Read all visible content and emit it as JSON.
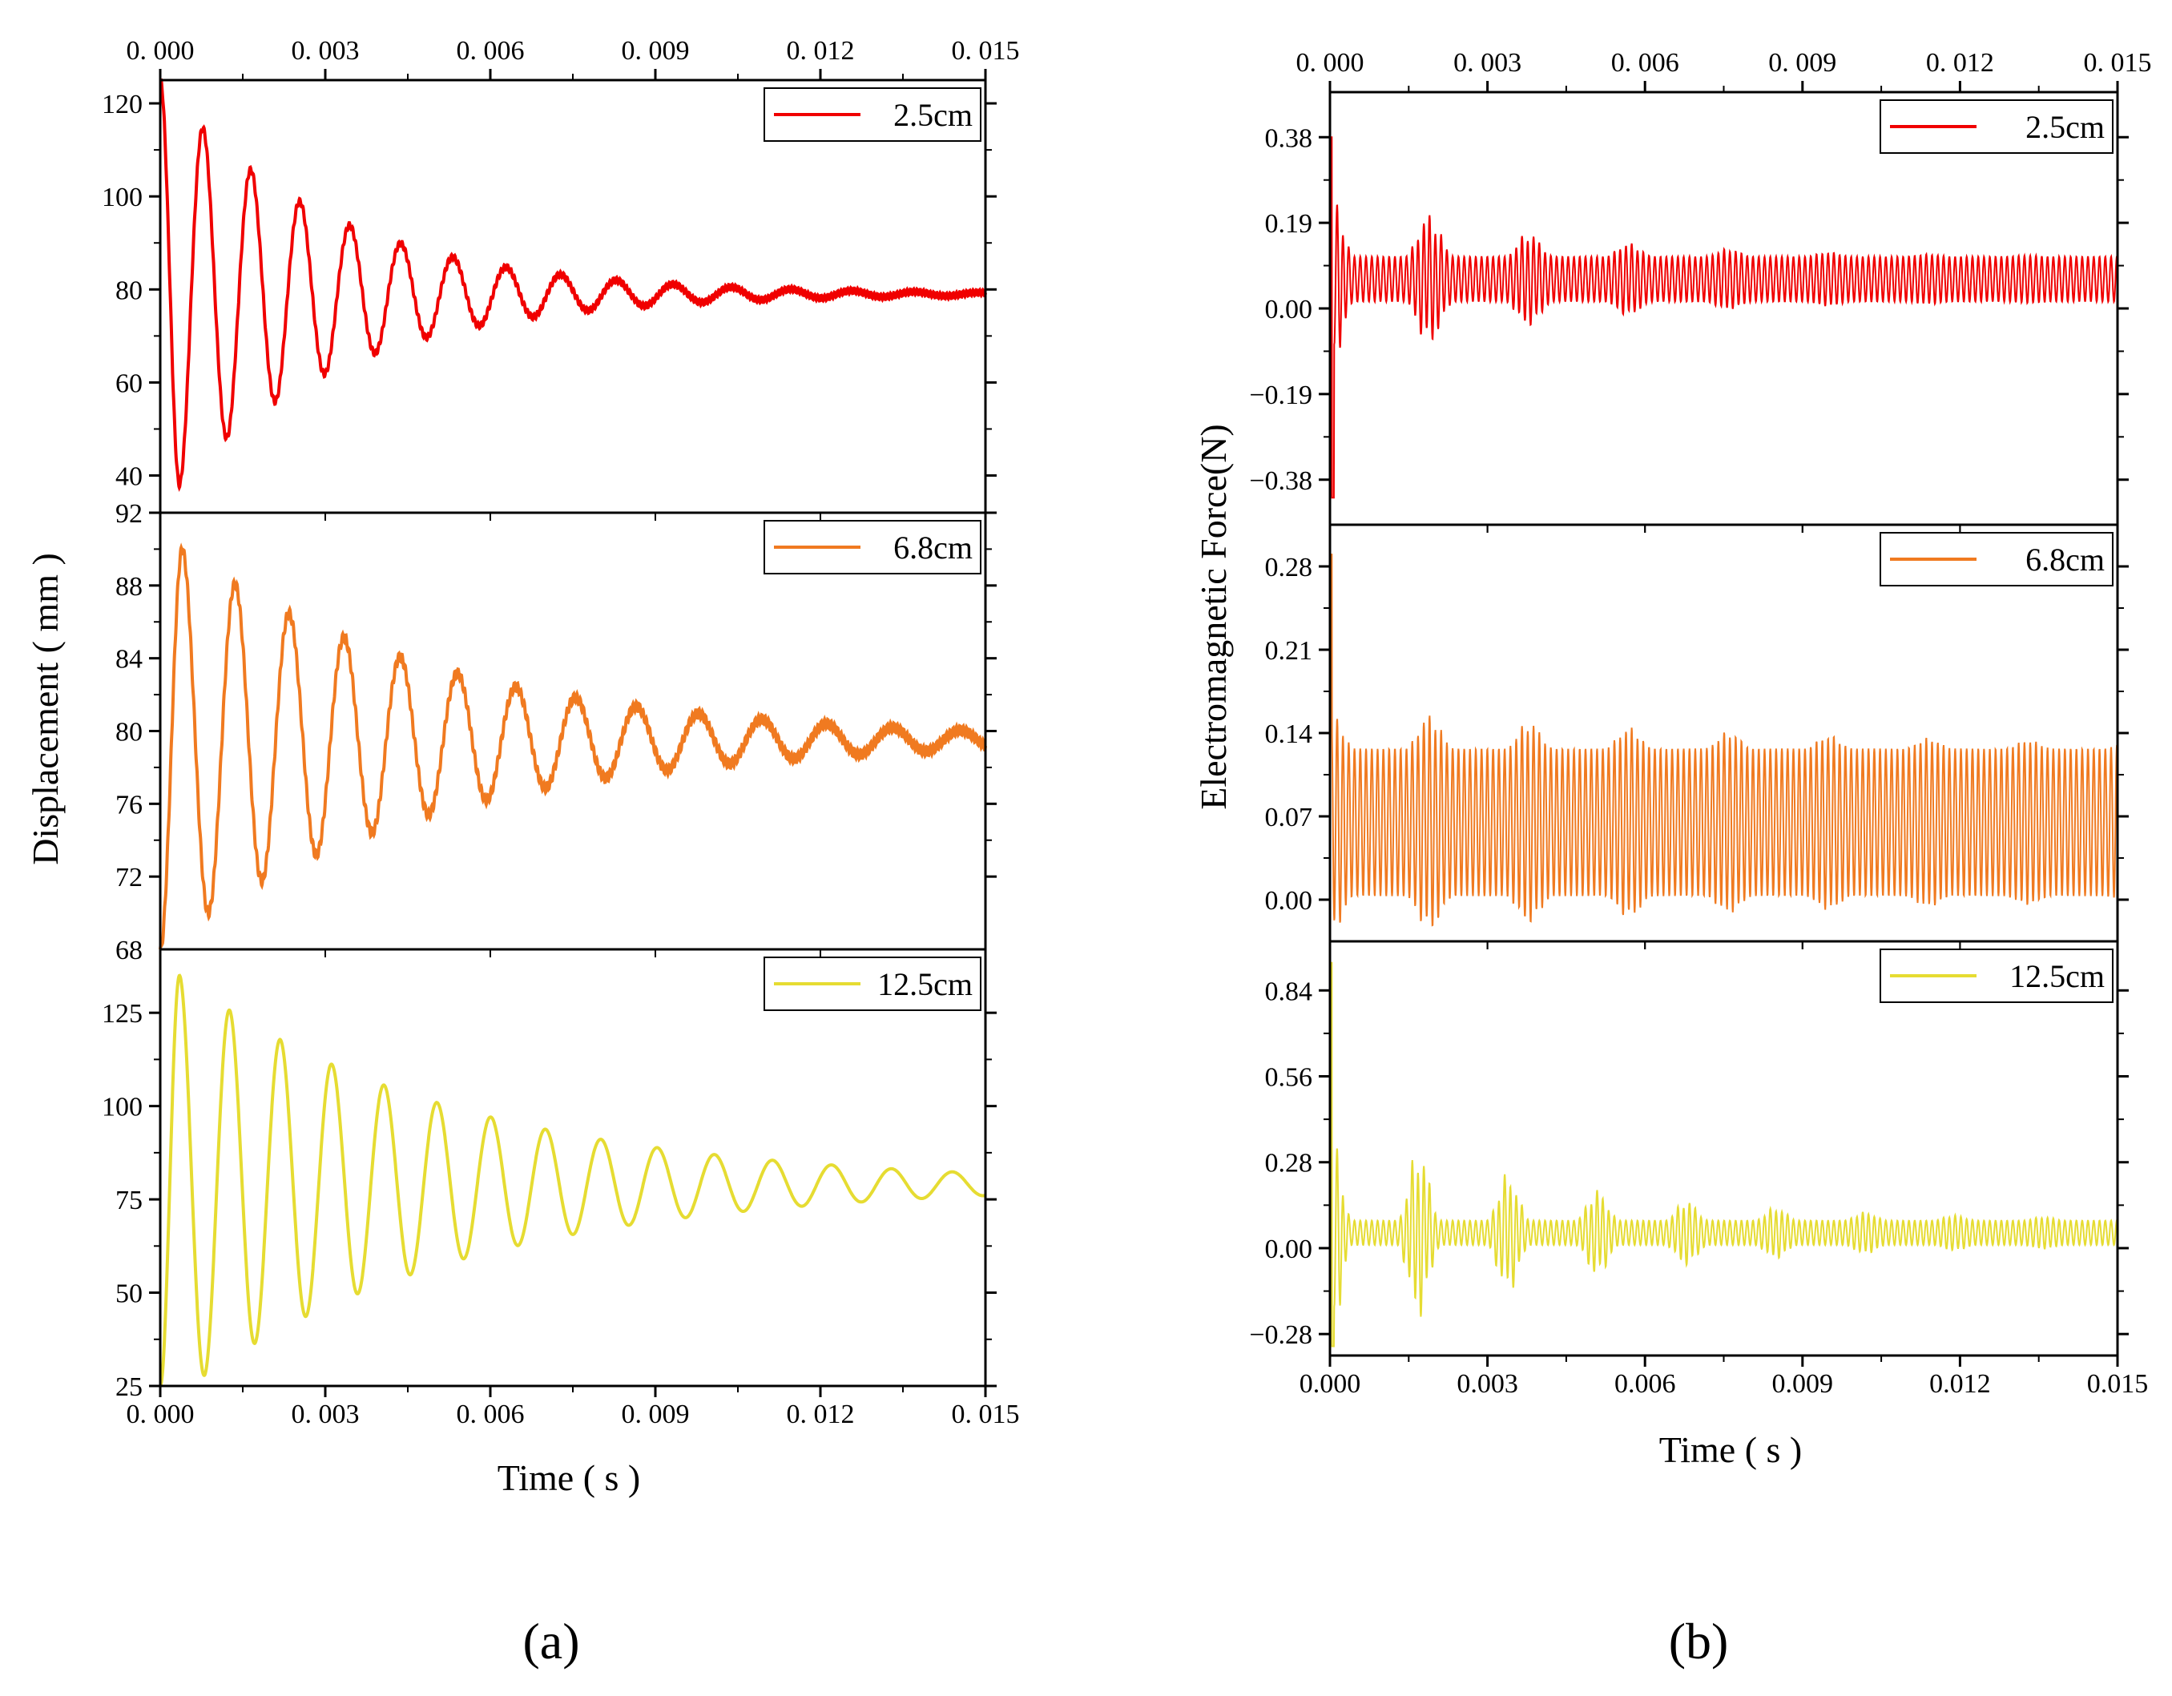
{
  "colors": {
    "red": "#f00000",
    "orange": "#f07a20",
    "yellow": "#e6dc32",
    "axis": "#000000"
  },
  "panel_a": {
    "caption": "(a)",
    "xlabel": "Time ( s )",
    "ylabel": "Displacement ( mm )",
    "x_ticks": [
      "0.000",
      "0.003",
      "0.006",
      "0.009",
      "0.012",
      "0.015"
    ],
    "top_x_ticks": [
      "0. 000",
      "0. 003",
      "0. 006",
      "0. 009",
      "0. 012",
      "0. 015"
    ],
    "bottom_x_ticks": [
      "0. 000",
      "0. 003",
      "0. 006",
      "0. 009",
      "0. 012",
      "0. 015"
    ]
  },
  "panel_b": {
    "caption": "(b)",
    "xlabel": "Time ( s )",
    "ylabel": "Electromagnetic Force(N)",
    "top_x_ticks": [
      "0. 000",
      "0. 003",
      "0. 006",
      "0. 009",
      "0. 012",
      "0. 015"
    ],
    "bottom_x_ticks": [
      "0.000",
      "0.003",
      "0.006",
      "0.009",
      "0.012",
      "0.015"
    ]
  },
  "chart_data": [
    {
      "type": "line",
      "panel": "a",
      "series": [
        {
          "name": "2.5cm",
          "color": "red"
        }
      ],
      "xlim": [
        0,
        0.015
      ],
      "ylim": [
        32,
        125
      ],
      "y_ticks": [
        "40",
        "60",
        "80",
        "100",
        "120"
      ],
      "y_tick_values": [
        40,
        60,
        80,
        100,
        120
      ],
      "model": {
        "kind": "damped",
        "start": 125,
        "equilibrium": 79,
        "first_peak_time": 0.00035,
        "first_peak_dev": -41,
        "period": 0.00085,
        "decay": 330,
        "period_growth": 12,
        "ripple": 0.6
      }
    },
    {
      "type": "line",
      "panel": "a",
      "series": [
        {
          "name": "6.8cm",
          "color": "orange"
        }
      ],
      "xlim": [
        0,
        0.015
      ],
      "ylim": [
        68,
        92
      ],
      "y_ticks": [
        "72",
        "76",
        "80",
        "84",
        "88",
        "92"
      ],
      "y_tick_values": [
        72,
        76,
        80,
        84,
        88,
        92
      ],
      "extra_ticks": [
        {
          "label": "68",
          "value": 68
        }
      ],
      "model": {
        "kind": "damped",
        "start": 68,
        "equilibrium": 79.5,
        "first_peak_time": 0.0004,
        "first_peak_dev": 10.5,
        "period": 0.00095,
        "decay": 210,
        "period_growth": 10,
        "ripple": 0.25
      }
    },
    {
      "type": "line",
      "panel": "a",
      "series": [
        {
          "name": "12.5cm",
          "color": "yellow"
        }
      ],
      "xlim": [
        0,
        0.015
      ],
      "ylim": [
        25,
        142
      ],
      "y_ticks": [
        "25",
        "50",
        "75",
        "100",
        "125"
      ],
      "y_tick_values": [
        25,
        50,
        75,
        100,
        125
      ],
      "model": {
        "kind": "damped",
        "start": 25,
        "equilibrium": 79,
        "first_peak_time": 0.00035,
        "first_peak_dev": 56,
        "period": 0.0009,
        "decay": 200,
        "period_growth": 8,
        "ripple": 0.0
      }
    },
    {
      "type": "line",
      "panel": "b",
      "series": [
        {
          "name": "2.5cm",
          "color": "red"
        }
      ],
      "xlim": [
        0,
        0.015
      ],
      "ylim": [
        -0.48,
        0.48
      ],
      "y_ticks": [
        "−0.38",
        "−0.19",
        "0.00",
        "0.19",
        "0.38"
      ],
      "y_tick_values": [
        -0.38,
        -0.19,
        0,
        0.19,
        0.38
      ],
      "model": {
        "kind": "force",
        "mean": 0.065,
        "base_amp": 0.05,
        "env_amp": 0.14,
        "env_decay": 300,
        "env_period": 0.00095,
        "carrier_period": 0.00011,
        "spike": 0.38,
        "neg_spike": -0.42
      }
    },
    {
      "type": "line",
      "panel": "b",
      "series": [
        {
          "name": "6.8cm",
          "color": "orange"
        }
      ],
      "xlim": [
        0,
        0.015
      ],
      "ylim": [
        -0.035,
        0.315
      ],
      "y_ticks": [
        "0.00",
        "0.07",
        "0.14",
        "0.21",
        "0.28"
      ],
      "y_tick_values": [
        0,
        0.07,
        0.14,
        0.21,
        0.28
      ],
      "model": {
        "kind": "force",
        "mean": 0.065,
        "base_amp": 0.062,
        "env_amp": 0.03,
        "env_decay": 120,
        "env_period": 0.00095,
        "carrier_period": 0.00011,
        "spike": 0.29,
        "neg_spike": 0.0
      }
    },
    {
      "type": "line",
      "panel": "b",
      "series": [
        {
          "name": "12.5cm",
          "color": "yellow"
        }
      ],
      "xlim": [
        0,
        0.015
      ],
      "ylim": [
        -0.35,
        1.0
      ],
      "y_ticks": [
        "−0.28",
        "0.00",
        "0.28",
        "0.56",
        "0.84"
      ],
      "y_tick_values": [
        -0.28,
        0,
        0.28,
        0.56,
        0.84
      ],
      "model": {
        "kind": "force",
        "mean": 0.05,
        "base_amp": 0.04,
        "env_amp": 0.3,
        "env_decay": 250,
        "env_period": 0.00085,
        "carrier_period": 0.00011,
        "spike": 0.93,
        "neg_spike": -0.32
      }
    }
  ]
}
